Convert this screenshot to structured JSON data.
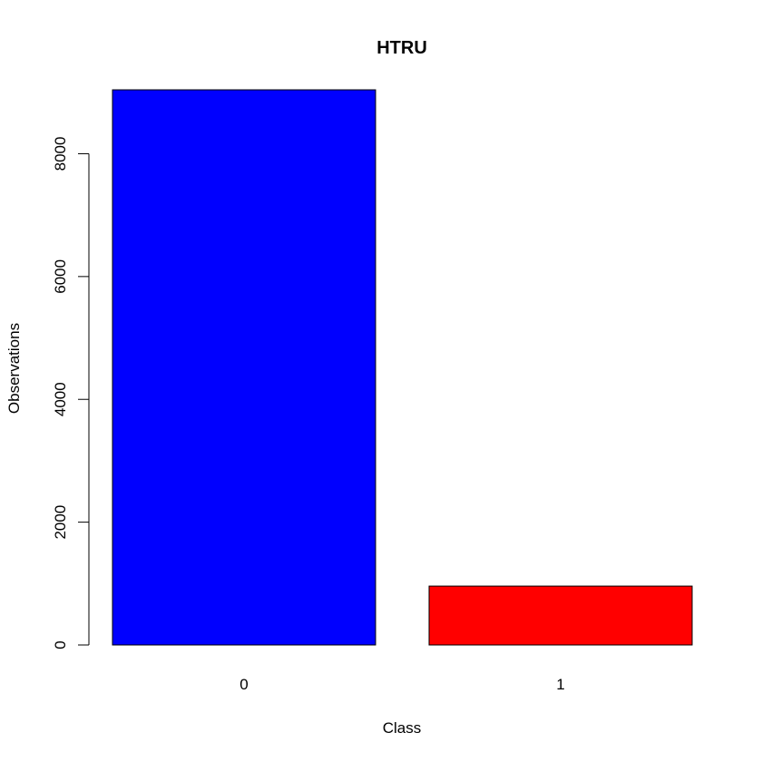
{
  "chart_data": {
    "type": "bar",
    "title": "HTRU",
    "xlabel": "Class",
    "ylabel": "Observations",
    "categories": [
      "0",
      "1"
    ],
    "values": [
      9041,
      959
    ],
    "colors": [
      "#0000ff",
      "#ff0000"
    ],
    "ylim": [
      0,
      9041
    ],
    "yticks": [
      0,
      2000,
      4000,
      6000,
      8000
    ],
    "ytick_labels": [
      "0",
      "2000",
      "4000",
      "6000",
      "8000"
    ],
    "grid": false,
    "legend": "none"
  }
}
